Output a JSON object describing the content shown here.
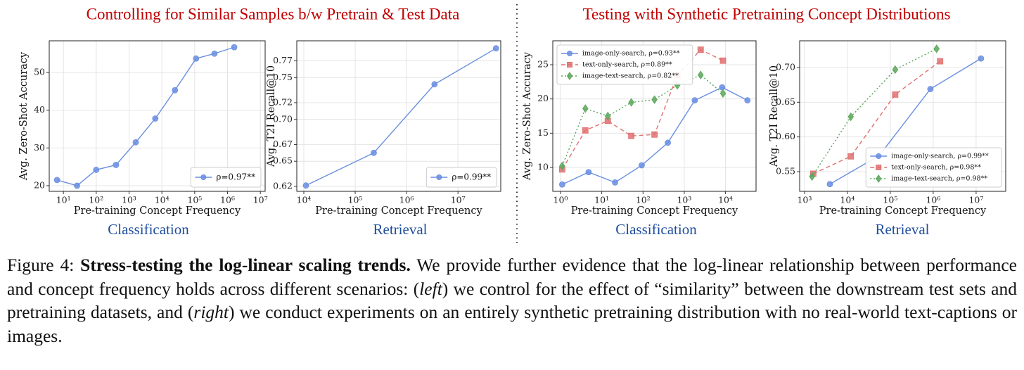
{
  "headers": [
    "Controlling for Similar Samples b/w Pretrain & Test Data",
    "Testing with Synthetic Pretraining Concept Distributions"
  ],
  "subtitles": [
    "Classification",
    "Retrieval",
    "Classification",
    "Retrieval"
  ],
  "chart_data": [
    {
      "type": "line",
      "xlabel": "Pre-training Concept Frequency",
      "ylabel": "Avg. Zero-Shot Accuracy",
      "xscale": "log",
      "xlim": [
        3.7,
        14000000
      ],
      "ylim": [
        18.5,
        58.4
      ],
      "xticks": [
        {
          "value": 10,
          "label": "10¹"
        },
        {
          "value": 100,
          "label": "10²"
        },
        {
          "value": 1000,
          "label": "10³"
        },
        {
          "value": 10000,
          "label": "10⁴"
        },
        {
          "value": 100000,
          "label": "10⁵"
        },
        {
          "value": 1000000,
          "label": "10⁶"
        },
        {
          "value": 10000000,
          "label": "10⁷"
        }
      ],
      "yticks": [
        20,
        30,
        40,
        50
      ],
      "grid": true,
      "legend": "lower right",
      "series": [
        {
          "name": "ρ=0.97**",
          "color": "#6a8ee0",
          "marker": "circle",
          "linestyle": "solid",
          "x": [
            6.4,
            26,
            100,
            400,
            1600,
            6300,
            25000,
            110000,
            400000,
            1600000
          ],
          "values": [
            21.5,
            20,
            24.2,
            25.5,
            31.5,
            37.8,
            45.3,
            53.7,
            55,
            56.7
          ]
        }
      ]
    },
    {
      "type": "line",
      "xlabel": "Pre-training Concept Frequency",
      "ylabel": "Avg. T2I Recall@10",
      "xscale": "log",
      "xlim": [
        7300,
        68000000
      ],
      "ylim": [
        0.614,
        0.794
      ],
      "xticks": [
        {
          "value": 10000,
          "label": "10⁴"
        },
        {
          "value": 100000,
          "label": "10⁵"
        },
        {
          "value": 1000000,
          "label": "10⁶"
        },
        {
          "value": 10000000,
          "label": "10⁷"
        }
      ],
      "yticks": [
        0.62,
        0.65,
        0.67,
        {
          "value": 0.7,
          "label": "0.70"
        },
        0.72,
        0.75,
        0.77
      ],
      "grid": true,
      "legend": "lower right",
      "series": [
        {
          "name": "ρ=0.99**",
          "color": "#6a8ee0",
          "marker": "circle",
          "linestyle": "solid",
          "x": [
            11000,
            230000,
            3500000,
            55000000
          ],
          "values": [
            0.621,
            0.66,
            0.742,
            0.785
          ]
        }
      ]
    },
    {
      "type": "line",
      "xlabel": "Pre-training Concept Frequency",
      "ylabel": "Avg. Zero-Shot Accuracy",
      "xscale": "log",
      "xlim": [
        0.65,
        55000
      ],
      "ylim": [
        6.5,
        28.5
      ],
      "xticks": [
        {
          "value": 1,
          "label": "10⁰"
        },
        {
          "value": 10,
          "label": "10¹"
        },
        {
          "value": 100,
          "label": "10²"
        },
        {
          "value": 1000,
          "label": "10³"
        },
        {
          "value": 10000,
          "label": "10⁴"
        }
      ],
      "yticks": [
        10,
        15,
        20,
        25
      ],
      "grid": true,
      "legend": "upper left",
      "series": [
        {
          "name": "image-only-search, ρ=0.93**",
          "color": "#6a8ee0",
          "marker": "circle",
          "linestyle": "solid",
          "x": [
            1.1,
            4.8,
            21,
            93,
            400,
            1800,
            8300,
            34000
          ],
          "values": [
            7.5,
            9.3,
            7.8,
            10.3,
            13.6,
            19.8,
            21.7,
            19.8
          ]
        },
        {
          "name": "text-only-search, ρ=0.89**",
          "color": "#e07070",
          "marker": "square",
          "linestyle": "dashed",
          "x": [
            1.1,
            4,
            14,
            52,
            190,
            680,
            2500,
            8700
          ],
          "values": [
            9.7,
            15.4,
            16.8,
            14.6,
            14.8,
            23.5,
            27.2,
            25.6
          ]
        },
        {
          "name": "image-text-search, ρ=0.82**",
          "color": "#5aa65a",
          "marker": "diamond",
          "linestyle": "dotted",
          "x": [
            1.1,
            4,
            14,
            52,
            190,
            680,
            2500,
            8700
          ],
          "values": [
            10.2,
            18.6,
            17.5,
            19.5,
            19.9,
            22,
            23.5,
            20.8
          ]
        }
      ]
    },
    {
      "type": "line",
      "xlabel": "Pre-training Concept Frequency",
      "ylabel": "Avg. T2I Recall@10",
      "xscale": "log",
      "xlim": [
        770,
        49000000
      ],
      "ylim": [
        0.5216,
        0.7385
      ],
      "xticks": [
        {
          "value": 1000,
          "label": "10³"
        },
        {
          "value": 10000,
          "label": "10⁴"
        },
        {
          "value": 100000,
          "label": "10⁵"
        },
        {
          "value": 1000000,
          "label": "10⁶"
        },
        {
          "value": 10000000,
          "label": "10⁷"
        }
      ],
      "yticks": [
        0.55,
        {
          "value": 0.6,
          "label": "0.60"
        },
        0.65,
        {
          "value": 0.7,
          "label": "0.70"
        }
      ],
      "grid": true,
      "legend": "lower right",
      "series": [
        {
          "name": "image-only-search, ρ=0.99**",
          "color": "#6a8ee0",
          "marker": "circle",
          "linestyle": "solid",
          "x": [
            3900,
            55000,
            860000,
            13000000
          ],
          "values": [
            0.532,
            0.573,
            0.669,
            0.713
          ]
        },
        {
          "name": "text-only-search, ρ=0.98**",
          "color": "#e07070",
          "marker": "square",
          "linestyle": "dashed",
          "x": [
            1600,
            12000,
            130000,
            1450000
          ],
          "values": [
            0.547,
            0.572,
            0.661,
            0.709
          ]
        },
        {
          "name": "image-text-search, ρ=0.98**",
          "color": "#5aa65a",
          "marker": "diamond",
          "linestyle": "dotted",
          "x": [
            1500,
            12000,
            130000,
            1200000
          ],
          "values": [
            0.543,
            0.629,
            0.697,
            0.727
          ]
        }
      ]
    }
  ],
  "caption": {
    "label": "Figure 4:",
    "title": "Stress-testing the log-linear scaling trends.",
    "segments": [
      "We provide further evidence that the log-linear relationship between performance and concept frequency holds across different scenarios: (",
      "left",
      ") we control for the effect of “similarity” between the downstream test sets and pretraining datasets, and (",
      "right",
      ") we conduct experiments on an entirely synthetic pretraining distribution with no real-world text-captions or images."
    ]
  }
}
